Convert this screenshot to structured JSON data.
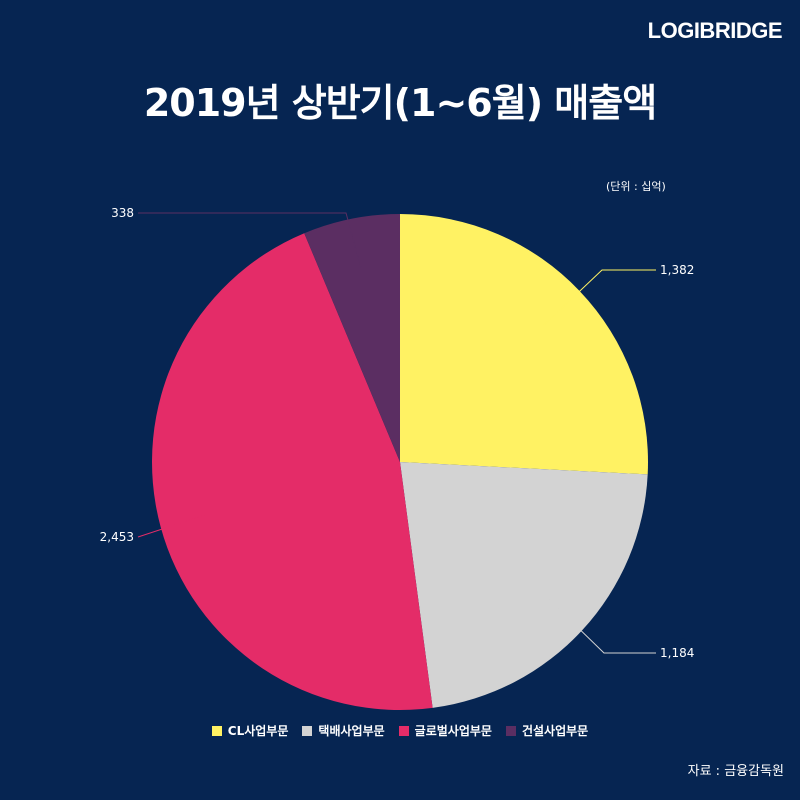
{
  "brand": "LOGIBRIDGE",
  "unit_note": "(단위 : 십억)",
  "source": "자료 : 금융감독원",
  "chart_data": {
    "type": "pie",
    "title": "2019년 상반기(1~6월) 매출액",
    "slices": [
      {
        "name": "CL사업부문",
        "value": 1382,
        "label": "1,382",
        "color": "#FFF263"
      },
      {
        "name": "택배사업부문",
        "value": 1184,
        "label": "1,184",
        "color": "#D3D3D3"
      },
      {
        "name": "글로벌사업부문",
        "value": 2453,
        "label": "2,453",
        "color": "#E42C68"
      },
      {
        "name": "건설사업부문",
        "value": 338,
        "label": "338",
        "color": "#5B2E62"
      }
    ],
    "legend_position": "bottom"
  }
}
